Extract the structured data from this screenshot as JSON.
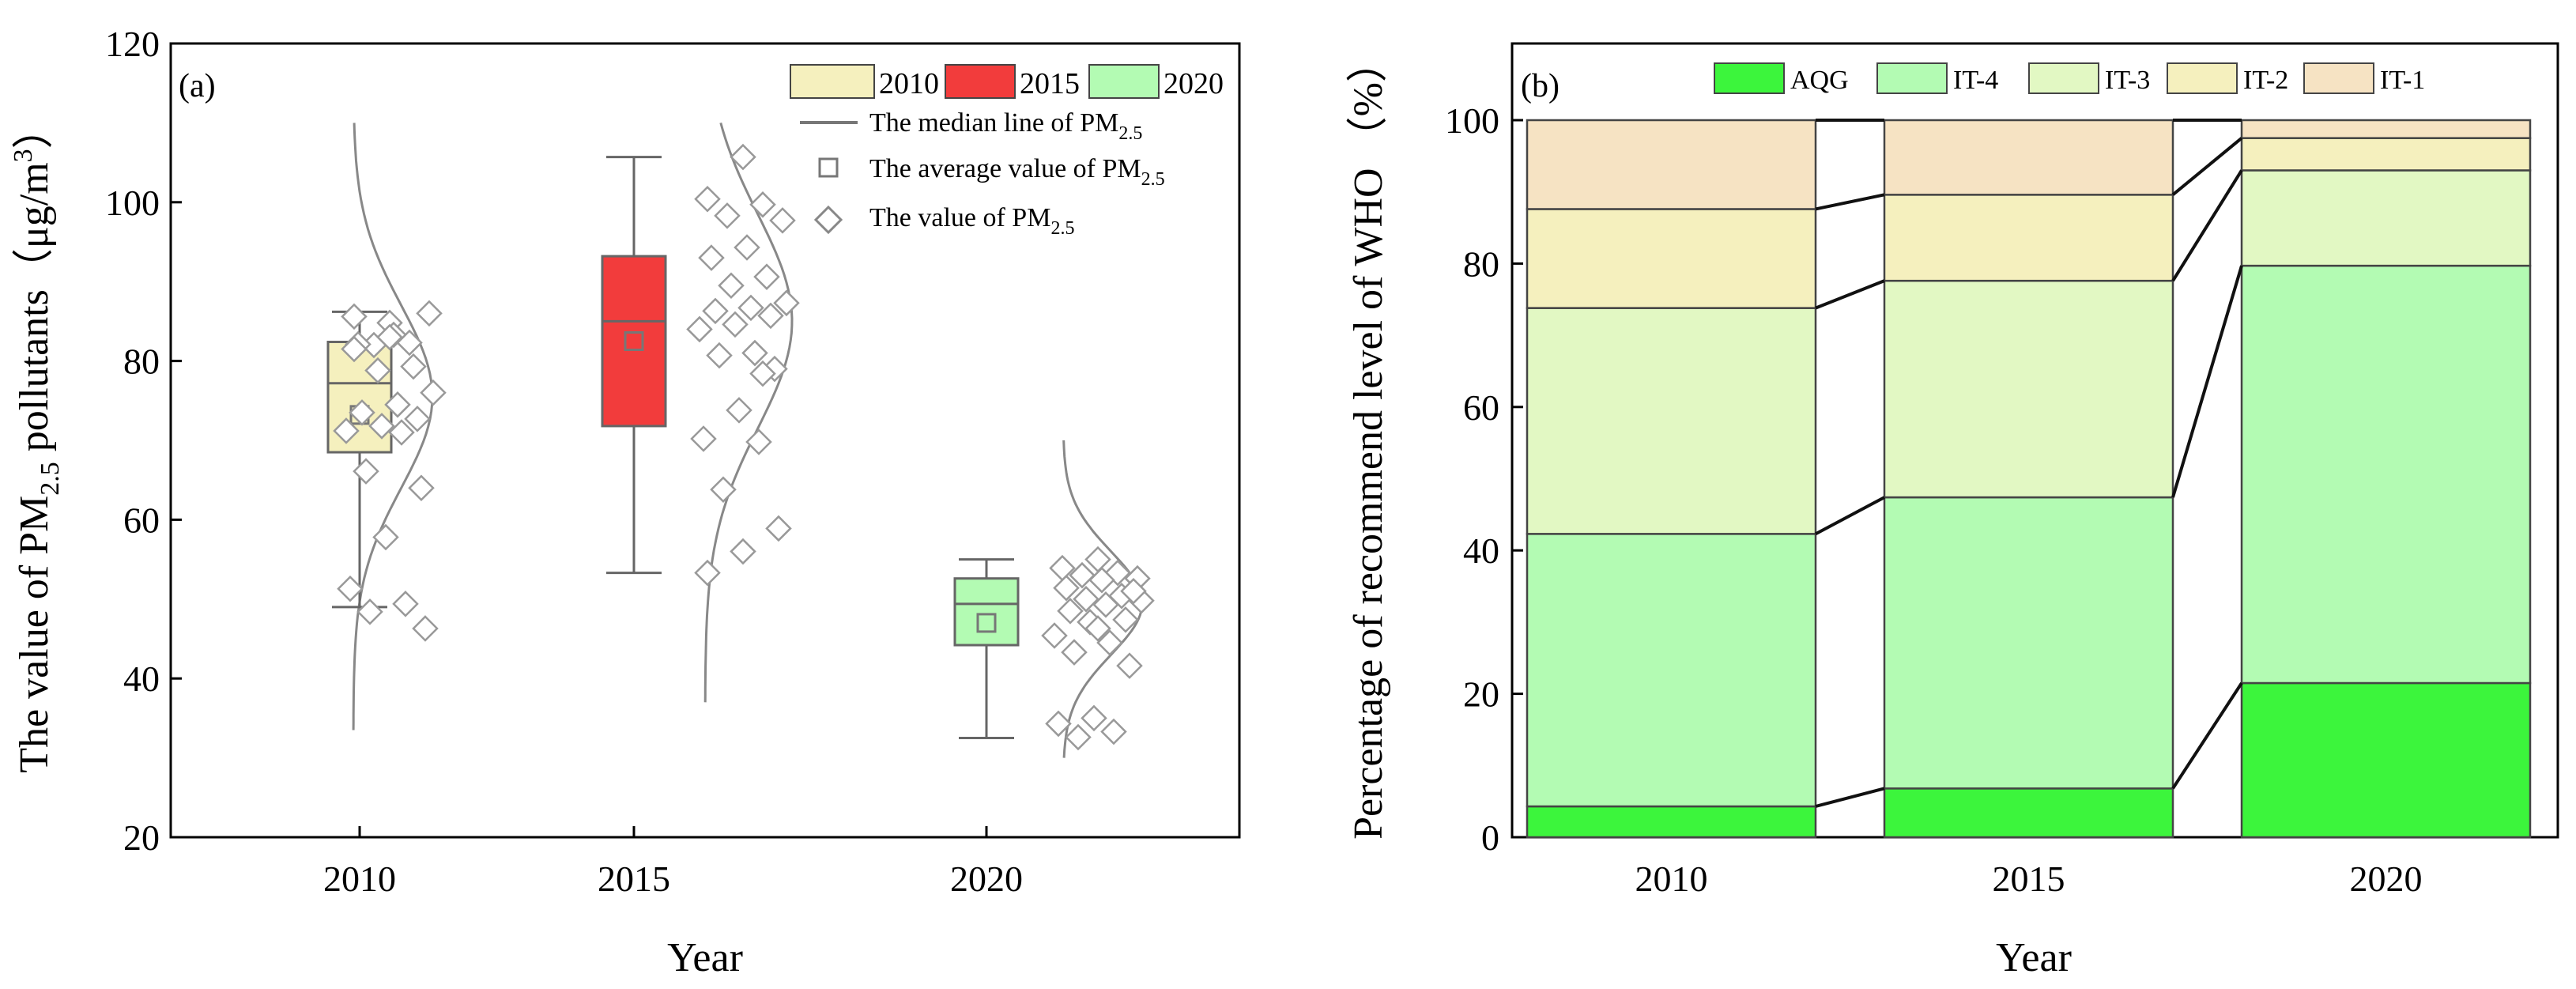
{
  "chart_data": [
    {
      "type": "box",
      "panel_label": "(a)",
      "title": "",
      "ylabel_parts": {
        "prefix": "The  value of  PM",
        "sub": "2.5",
        "mid": " pollutants（μg/m",
        "sup": "3",
        "suffix": "）"
      },
      "xlabel": "Year",
      "ylim": [
        20,
        120
      ],
      "yticks": [
        20,
        40,
        60,
        80,
        100,
        120
      ],
      "categories": [
        "2010",
        "2015",
        "2020"
      ],
      "legend": {
        "boxes": [
          {
            "label": "2010",
            "color": "#f5f0be"
          },
          {
            "label": "2015",
            "color": "#f23c3c"
          },
          {
            "label": "2020",
            "color": "#b3fbb3"
          }
        ],
        "median_line": {
          "prefix": "The median line of  PM",
          "sub": "2.5"
        },
        "average": {
          "prefix": "The average value of  PM",
          "sub": "2.5"
        },
        "value": {
          "prefix": "The value of PM",
          "sub": "2.5"
        }
      },
      "boxes": [
        {
          "year": "2010",
          "color": "#f5f0be",
          "min": 49,
          "q1": 68.5,
          "median": 77.2,
          "q3": 82.4,
          "max": 86.2,
          "mean": 73.2
        },
        {
          "year": "2015",
          "color": "#f23c3c",
          "min": 53.3,
          "q1": 71.8,
          "median": 85,
          "q3": 93.2,
          "max": 105.7,
          "mean": 82.5
        },
        {
          "year": "2020",
          "color": "#b3fbb3",
          "min": 32.5,
          "q1": 44.2,
          "median": 49.4,
          "q3": 52.6,
          "max": 55,
          "mean": 47
        }
      ],
      "points": [
        [
          84.8,
          85.6,
          82.3,
          82.0,
          86.0,
          83.3,
          82.1,
          79.3,
          78.8,
          76.0,
          74.5,
          73.5,
          72.7,
          71.8,
          71.2,
          71.0,
          66.1,
          64.0,
          57.8,
          51.3,
          49.4,
          48.4,
          46.3,
          83.0,
          81.5
        ],
        [
          105.7,
          100.4,
          99.7,
          98.3,
          97.7,
          94.3,
          93.0,
          90.6,
          89.5,
          87.3,
          86.7,
          86.3,
          85.7,
          84.6,
          84.0,
          81.0,
          80.7,
          79.0,
          73.8,
          70.2,
          69.8,
          63.8,
          58.9,
          56.0,
          53.3,
          78.4
        ],
        [
          55.0,
          53.9,
          53.3,
          53.0,
          52.6,
          52.4,
          51.4,
          50.4,
          50.0,
          49.8,
          49.3,
          48.5,
          47.4,
          47.1,
          45.4,
          44.5,
          43.3,
          41.6,
          35.0,
          34.3,
          33.3,
          32.6,
          51.0,
          46.3
        ]
      ],
      "distribution": [
        {
          "mean": 75.5,
          "sd": 11.5,
          "ymin": 33.5,
          "ymax": 110
        },
        {
          "mean": 85,
          "sd": 13.5,
          "ymin": 37,
          "ymax": 110
        },
        {
          "mean": 49.5,
          "sd": 6.5,
          "ymin": 30,
          "ymax": 70
        }
      ]
    },
    {
      "type": "stacked_bar",
      "panel_label": "(b)",
      "title": "",
      "ylabel": "Percentage of recommend level of  WHO （%）",
      "xlabel": "Year",
      "ylim": [
        0,
        100
      ],
      "yticks": [
        0,
        20,
        40,
        60,
        80,
        100
      ],
      "categories": [
        "2010",
        "2015",
        "2020"
      ],
      "series": [
        {
          "name": "AQG",
          "color": "#3cf53c",
          "values": [
            4.3,
            6.8,
            21.5
          ]
        },
        {
          "name": "IT-4",
          "color": "#b3fbb3",
          "values": [
            38.0,
            40.6,
            58.2
          ]
        },
        {
          "name": "IT-3",
          "color": "#e2f8c3",
          "values": [
            31.5,
            30.2,
            13.3
          ]
        },
        {
          "name": "IT-2",
          "color": "#f5f0be",
          "values": [
            13.8,
            12.0,
            4.5
          ]
        },
        {
          "name": "IT-1",
          "color": "#f6e3c3",
          "values": [
            12.4,
            10.4,
            2.5
          ]
        }
      ]
    }
  ]
}
